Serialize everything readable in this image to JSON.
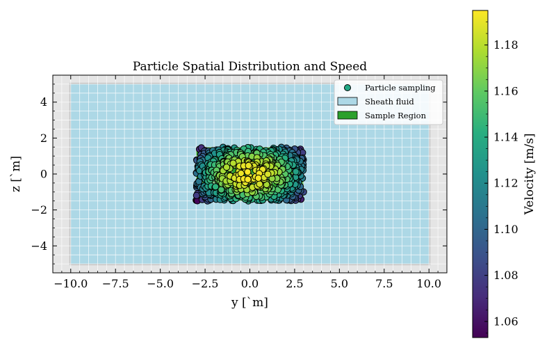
{
  "chart_data": {
    "type": "scatter",
    "title": "Particle Spatial Distribution and Speed",
    "xlabel": "y [`m]",
    "ylabel": "z [`m]",
    "xlim": [
      -11,
      11
    ],
    "ylim": [
      -5.5,
      5.5
    ],
    "x_ticks": [
      -10.0,
      -7.5,
      -5.0,
      -2.5,
      0.0,
      2.5,
      5.0,
      7.5,
      10.0
    ],
    "x_tick_labels": [
      "−10.0",
      "−7.5",
      "−5.0",
      "−2.5",
      "0.0",
      "2.5",
      "5.0",
      "7.5",
      "10.0"
    ],
    "y_ticks": [
      -4,
      -2,
      0,
      2,
      4
    ],
    "y_tick_labels": [
      "−4",
      "−2",
      "0",
      "2",
      "4"
    ],
    "grid": true,
    "legend_position": "upper right",
    "legend": [
      {
        "label": "Particle sampling",
        "kind": "marker",
        "color": "#21a784"
      },
      {
        "label": "Sheath fluid",
        "kind": "patch",
        "color": "#add8e6"
      },
      {
        "label": "Sample Region",
        "kind": "patch",
        "color": "#2ca02c"
      }
    ],
    "regions": [
      {
        "name": "Sheath fluid",
        "y_range": [
          -10,
          10
        ],
        "z_range": [
          -5,
          5
        ],
        "color": "#add8e6"
      },
      {
        "name": "Sample Region",
        "y_range": [
          -3,
          3
        ],
        "z_range": [
          -1.5,
          1.5
        ],
        "color": "#2ca02c"
      }
    ],
    "particles": {
      "count": 600,
      "y_range": [
        -3,
        3
      ],
      "z_range": [
        -1.5,
        1.5
      ],
      "speed_model": "parabolic profile, peak at center"
    },
    "colorbar": {
      "label": "Velocity [m/s]",
      "colormap": "viridis",
      "range": [
        1.053,
        1.195
      ],
      "ticks": [
        1.06,
        1.08,
        1.1,
        1.12,
        1.14,
        1.16,
        1.18
      ],
      "tick_labels": [
        "1.06",
        "1.08",
        "1.10",
        "1.12",
        "1.14",
        "1.16",
        "1.18"
      ]
    }
  }
}
